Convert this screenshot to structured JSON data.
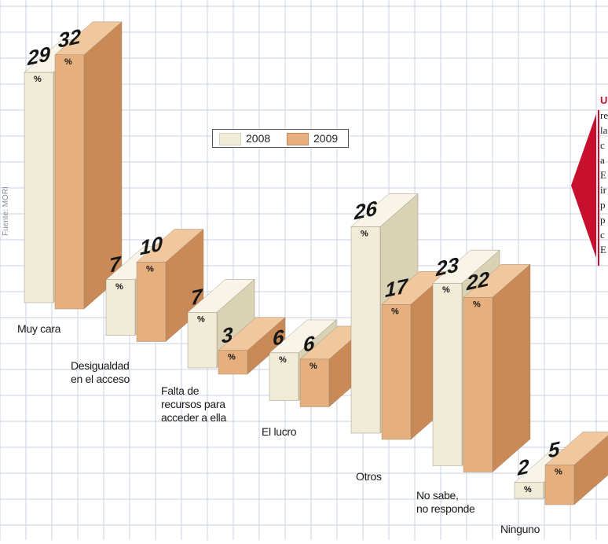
{
  "colors": {
    "series_2008": "#f1ecd8",
    "series_2008_side": "#d9d2b4",
    "series_2008_top": "#f8f5e8",
    "series_2009": "#e6b07e",
    "series_2009_side": "#c98a57",
    "series_2009_top": "#f1c89d",
    "grid": "#c9d3df",
    "accent_red": "#c8102e"
  },
  "source_text": "Fuente: MORI",
  "percent_sign": "%",
  "legend": [
    "2008",
    "2009"
  ],
  "sidebar_partial_text": [
    "U",
    "re",
    "la",
    "c",
    "a",
    "E",
    "ir",
    "p",
    "p",
    "c",
    "E"
  ],
  "chart_data": {
    "type": "bar",
    "categories": [
      "Muy cara",
      "Desigualdad\nen el acceso",
      "Falta de\nrecursos  para\nacceder a ella",
      "El lucro",
      "Otros",
      "No sabe,\nno responde",
      "Ninguno"
    ],
    "series": [
      {
        "name": "2008",
        "values": [
          29,
          7,
          7,
          6,
          26,
          23,
          2
        ]
      },
      {
        "name": "2009",
        "values": [
          32,
          10,
          3,
          6,
          17,
          22,
          5
        ]
      }
    ],
    "unit": "%",
    "ylim": [
      0,
      32
    ],
    "grid": true,
    "legend_position": "top-center",
    "style": "3d-columns-descending-diagonal"
  }
}
